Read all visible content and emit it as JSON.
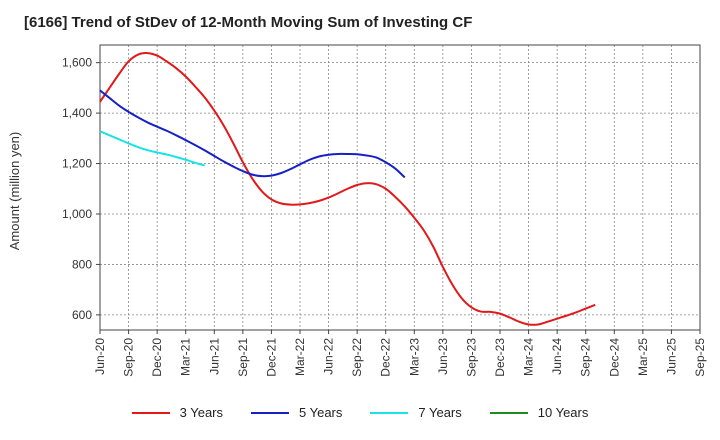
{
  "chart_data": {
    "type": "line",
    "title": "[6166]  Trend of StDev of 12-Month Moving Sum of Investing CF",
    "ylabel": "Amount (million yen)",
    "xlabel": "",
    "ylim": [
      540,
      1670
    ],
    "yticks": [
      600,
      800,
      1000,
      1200,
      1400,
      1600
    ],
    "ytick_labels": [
      "600",
      "800",
      "1,000",
      "1,200",
      "1,400",
      "1,600"
    ],
    "xticks": [
      "Jun-20",
      "Sep-20",
      "Dec-20",
      "Mar-21",
      "Jun-21",
      "Sep-21",
      "Dec-21",
      "Mar-22",
      "Jun-22",
      "Sep-22",
      "Dec-22",
      "Mar-23",
      "Jun-23",
      "Sep-23",
      "Dec-23",
      "Mar-24",
      "Jun-24",
      "Sep-24",
      "Dec-24",
      "Mar-25",
      "Jun-25",
      "Sep-25"
    ],
    "grid": true,
    "legend_position": "bottom",
    "series": [
      {
        "name": "3 Years",
        "color": "#e0191b",
        "points": [
          [
            "Jun-20",
            1445
          ],
          [
            "Jul-20",
            1500
          ],
          [
            "Aug-20",
            1555
          ],
          [
            "Sep-20",
            1605
          ],
          [
            "Oct-20",
            1632
          ],
          [
            "Nov-20",
            1638
          ],
          [
            "Dec-20",
            1628
          ],
          [
            "Jan-21",
            1605
          ],
          [
            "Feb-21",
            1578
          ],
          [
            "Mar-21",
            1545
          ],
          [
            "Apr-21",
            1505
          ],
          [
            "May-21",
            1462
          ],
          [
            "Jun-21",
            1410
          ],
          [
            "Jul-21",
            1350
          ],
          [
            "Aug-21",
            1280
          ],
          [
            "Sep-21",
            1205
          ],
          [
            "Oct-21",
            1140
          ],
          [
            "Nov-21",
            1090
          ],
          [
            "Dec-21",
            1058
          ],
          [
            "Jan-22",
            1042
          ],
          [
            "Feb-22",
            1037
          ],
          [
            "Mar-22",
            1038
          ],
          [
            "Apr-22",
            1043
          ],
          [
            "May-22",
            1052
          ],
          [
            "Jun-22",
            1065
          ],
          [
            "Jul-22",
            1082
          ],
          [
            "Aug-22",
            1100
          ],
          [
            "Sep-22",
            1115
          ],
          [
            "Oct-22",
            1122
          ],
          [
            "Nov-22",
            1118
          ],
          [
            "Dec-22",
            1100
          ],
          [
            "Jan-23",
            1068
          ],
          [
            "Feb-23",
            1030
          ],
          [
            "Mar-23",
            985
          ],
          [
            "Apr-23",
            935
          ],
          [
            "May-23",
            870
          ],
          [
            "Jun-23",
            790
          ],
          [
            "Jul-23",
            720
          ],
          [
            "Aug-23",
            665
          ],
          [
            "Sep-23",
            630
          ],
          [
            "Oct-23",
            613
          ],
          [
            "Nov-23",
            612
          ],
          [
            "Dec-23",
            605
          ],
          [
            "Jan-24",
            590
          ],
          [
            "Feb-24",
            573
          ],
          [
            "Mar-24",
            562
          ],
          [
            "Apr-24",
            562
          ],
          [
            "May-24",
            573
          ],
          [
            "Jun-24",
            585
          ],
          [
            "Jul-24",
            597
          ],
          [
            "Aug-24",
            610
          ],
          [
            "Sep-24",
            625
          ],
          [
            "Oct-24",
            640
          ]
        ]
      },
      {
        "name": "5 Years",
        "color": "#1521c6",
        "points": [
          [
            "Jun-20",
            1490
          ],
          [
            "Jul-20",
            1460
          ],
          [
            "Aug-20",
            1430
          ],
          [
            "Sep-20",
            1405
          ],
          [
            "Oct-20",
            1383
          ],
          [
            "Nov-20",
            1363
          ],
          [
            "Dec-20",
            1346
          ],
          [
            "Jan-21",
            1330
          ],
          [
            "Feb-21",
            1312
          ],
          [
            "Mar-21",
            1293
          ],
          [
            "Apr-21",
            1273
          ],
          [
            "May-21",
            1252
          ],
          [
            "Jun-21",
            1230
          ],
          [
            "Jul-21",
            1208
          ],
          [
            "Aug-21",
            1188
          ],
          [
            "Sep-21",
            1170
          ],
          [
            "Oct-21",
            1156
          ],
          [
            "Nov-21",
            1150
          ],
          [
            "Dec-21",
            1152
          ],
          [
            "Jan-22",
            1162
          ],
          [
            "Feb-22",
            1178
          ],
          [
            "Mar-22",
            1197
          ],
          [
            "Apr-22",
            1215
          ],
          [
            "May-22",
            1228
          ],
          [
            "Jun-22",
            1235
          ],
          [
            "Jul-22",
            1238
          ],
          [
            "Aug-22",
            1238
          ],
          [
            "Sep-22",
            1237
          ],
          [
            "Oct-22",
            1232
          ],
          [
            "Nov-22",
            1224
          ],
          [
            "Dec-22",
            1205
          ],
          [
            "Jan-23",
            1180
          ],
          [
            "Feb-23",
            1145
          ]
        ]
      },
      {
        "name": "7 Years",
        "color": "#19e3e8",
        "points": [
          [
            "Jun-20",
            1328
          ],
          [
            "Jul-20",
            1312
          ],
          [
            "Aug-20",
            1296
          ],
          [
            "Sep-20",
            1280
          ],
          [
            "Oct-20",
            1265
          ],
          [
            "Nov-20",
            1253
          ],
          [
            "Dec-20",
            1244
          ],
          [
            "Jan-21",
            1236
          ],
          [
            "Feb-21",
            1226
          ],
          [
            "Mar-21",
            1215
          ],
          [
            "Apr-21",
            1203
          ],
          [
            "May-21",
            1192
          ]
        ]
      },
      {
        "name": "10 Years",
        "color": "#1e8c1e",
        "points": []
      }
    ]
  }
}
